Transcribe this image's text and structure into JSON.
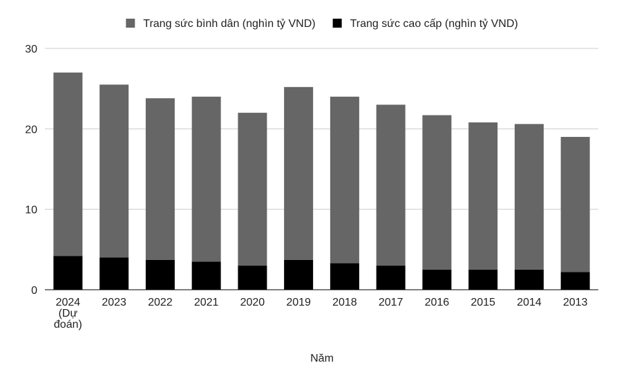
{
  "chart_data": {
    "type": "bar",
    "stacked": true,
    "categories": [
      "2024\n(Dự\nđoán)",
      "2023",
      "2022",
      "2021",
      "2020",
      "2019",
      "2018",
      "2017",
      "2016",
      "2015",
      "2014",
      "2013"
    ],
    "series": [
      {
        "name": "Trang sức cao cấp (nghìn tỷ VND)",
        "color": "#000000",
        "values": [
          4.2,
          4.0,
          3.7,
          3.5,
          3.0,
          3.7,
          3.3,
          3.0,
          2.5,
          2.5,
          2.5,
          2.2
        ]
      },
      {
        "name": "Trang sức bình dân (nghìn tỷ VND)",
        "color": "#666666",
        "values": [
          22.8,
          21.5,
          20.1,
          20.5,
          19.0,
          21.5,
          20.7,
          20.0,
          19.2,
          18.3,
          18.1,
          16.8
        ]
      }
    ],
    "legend_order": [
      1,
      0
    ],
    "legend_position": "top",
    "xlabel": "Năm",
    "ylabel": "",
    "ylim": [
      0,
      30
    ],
    "yticks": [
      0,
      10,
      20,
      30
    ],
    "grid": true,
    "gridline_color": "#cccccc"
  }
}
